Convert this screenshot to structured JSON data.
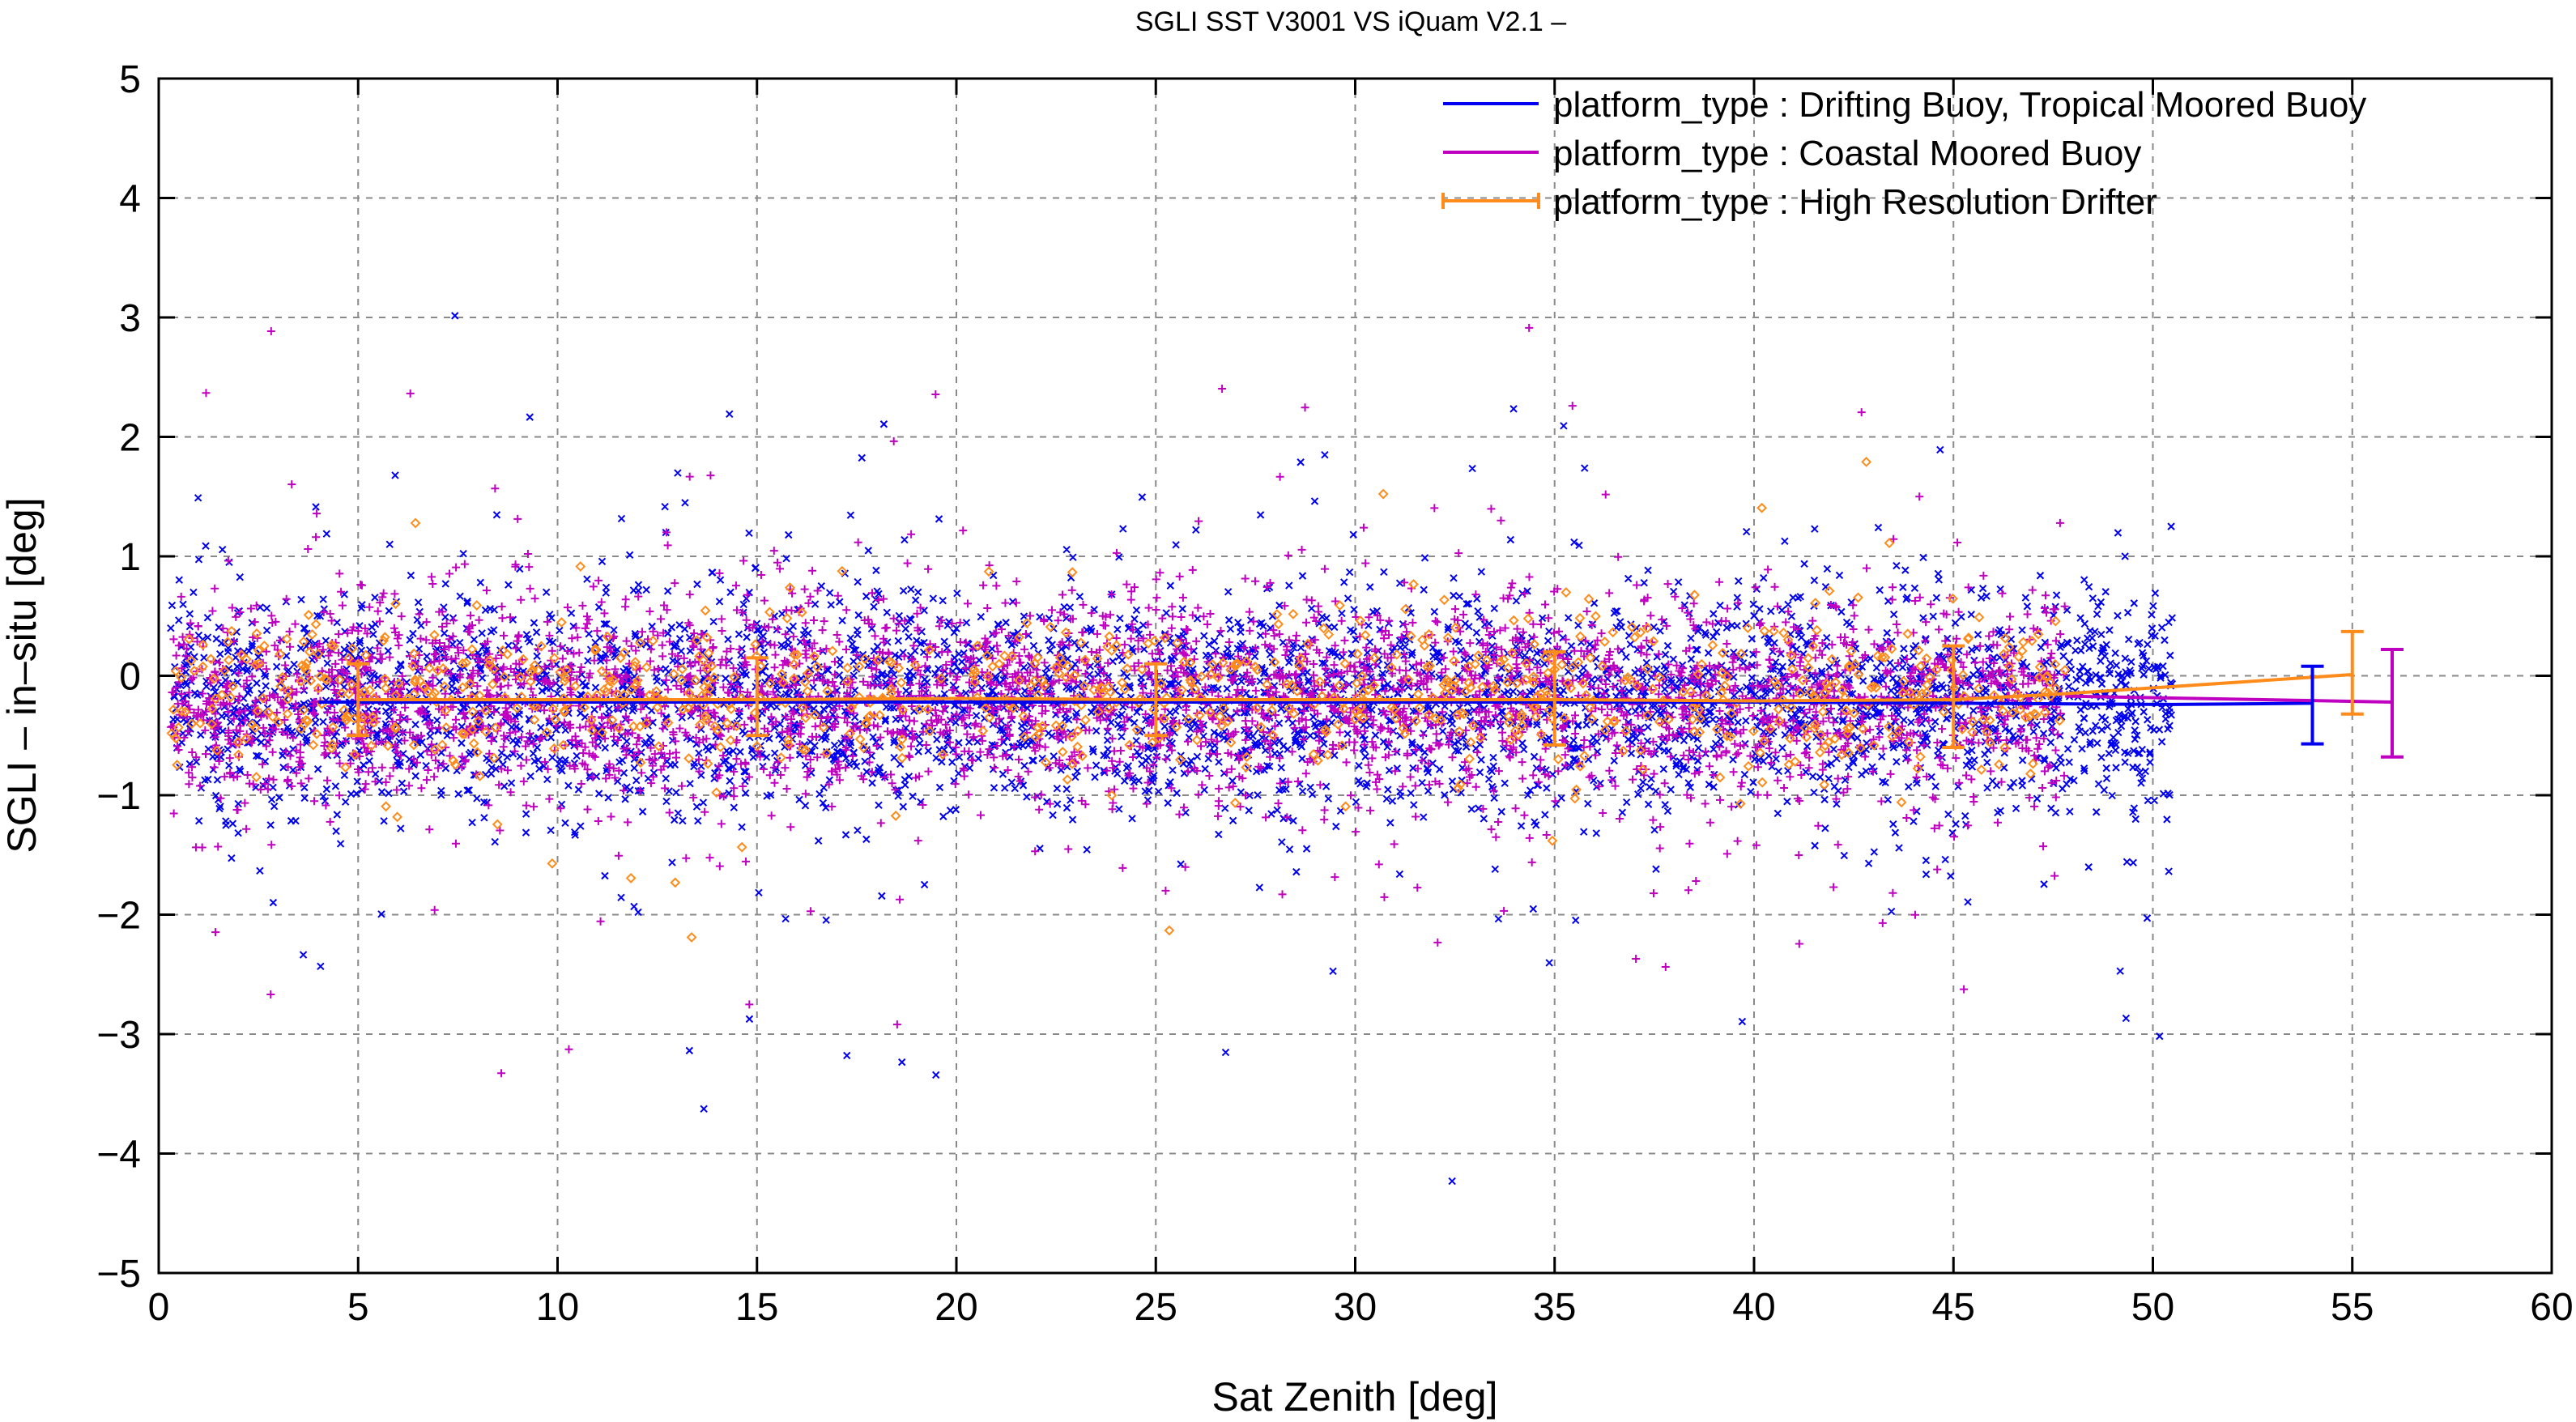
{
  "chart_data": {
    "type": "scatter",
    "title": "SGLI SST V3001 VS iQuam V2.1  –",
    "xlabel": "Sat Zenith [deg]",
    "ylabel": "SGLI – in–situ [deg]",
    "xlim": [
      0,
      60
    ],
    "ylim": [
      -5,
      5
    ],
    "xticks": [
      0,
      5,
      10,
      15,
      20,
      25,
      30,
      35,
      40,
      45,
      50,
      55,
      60
    ],
    "xtick_labels": [
      "0",
      "5",
      "10",
      "15",
      "20",
      "25",
      "30",
      "35",
      "40",
      "45",
      "50",
      "55",
      "60"
    ],
    "yticks": [
      -5,
      -4,
      -3,
      -2,
      -1,
      0,
      1,
      2,
      3,
      4,
      5
    ],
    "ytick_labels": [
      "−5",
      "−4",
      "−3",
      "−2",
      "−1",
      "0",
      "1",
      "2",
      "3",
      "4",
      "5"
    ],
    "grid": true,
    "legend_position": "top-right",
    "series": [
      {
        "name": "platform_type : Drifting Buoy, Tropical Moored Buoy",
        "color": "#0000ee",
        "marker": "x",
        "x_range": [
          0.3,
          50.5
        ],
        "center": -0.22,
        "spread": 0.45,
        "mean_x": [
          4,
          10,
          20,
          30,
          40,
          50.5,
          54
        ],
        "mean_y": [
          -0.22,
          -0.22,
          -0.22,
          -0.22,
          -0.22,
          -0.24,
          -0.23
        ],
        "errorbar": {
          "x": 54,
          "y": -0.23,
          "low": -0.57,
          "high": 0.08
        }
      },
      {
        "name": "platform_type : Coastal Moored Buoy",
        "color": "#c000c0",
        "marker": "+",
        "x_range": [
          0.3,
          47.8
        ],
        "center": -0.18,
        "spread": 0.42,
        "mean_x": [
          47.8,
          56
        ],
        "mean_y": [
          -0.17,
          -0.22
        ],
        "errorbar": {
          "x": 56,
          "y": -0.22,
          "low": -0.68,
          "high": 0.22
        }
      },
      {
        "name": "platform_type : High Resolution Drifter",
        "color": "#ff8c1a",
        "marker": "diamond",
        "x_range": [
          0.3,
          47.8
        ],
        "center": -0.15,
        "spread": 0.3,
        "mean_x": [
          5,
          10,
          15,
          20,
          25,
          30,
          35,
          40,
          45,
          47.8,
          55
        ],
        "mean_y": [
          -0.2,
          -0.2,
          -0.2,
          -0.19,
          -0.2,
          -0.2,
          -0.2,
          -0.21,
          -0.2,
          -0.15,
          0.01
        ],
        "errorbars": [
          {
            "x": 5,
            "y": -0.2,
            "low": -0.5,
            "high": 0.1
          },
          {
            "x": 15,
            "y": -0.2,
            "low": -0.5,
            "high": 0.15
          },
          {
            "x": 25,
            "y": -0.2,
            "low": -0.5,
            "high": 0.1
          },
          {
            "x": 35,
            "y": -0.2,
            "low": -0.58,
            "high": 0.2
          },
          {
            "x": 45,
            "y": -0.2,
            "low": -0.6,
            "high": 0.25
          },
          {
            "x": 55,
            "y": 0.01,
            "low": -0.32,
            "high": 0.37
          }
        ]
      }
    ]
  }
}
